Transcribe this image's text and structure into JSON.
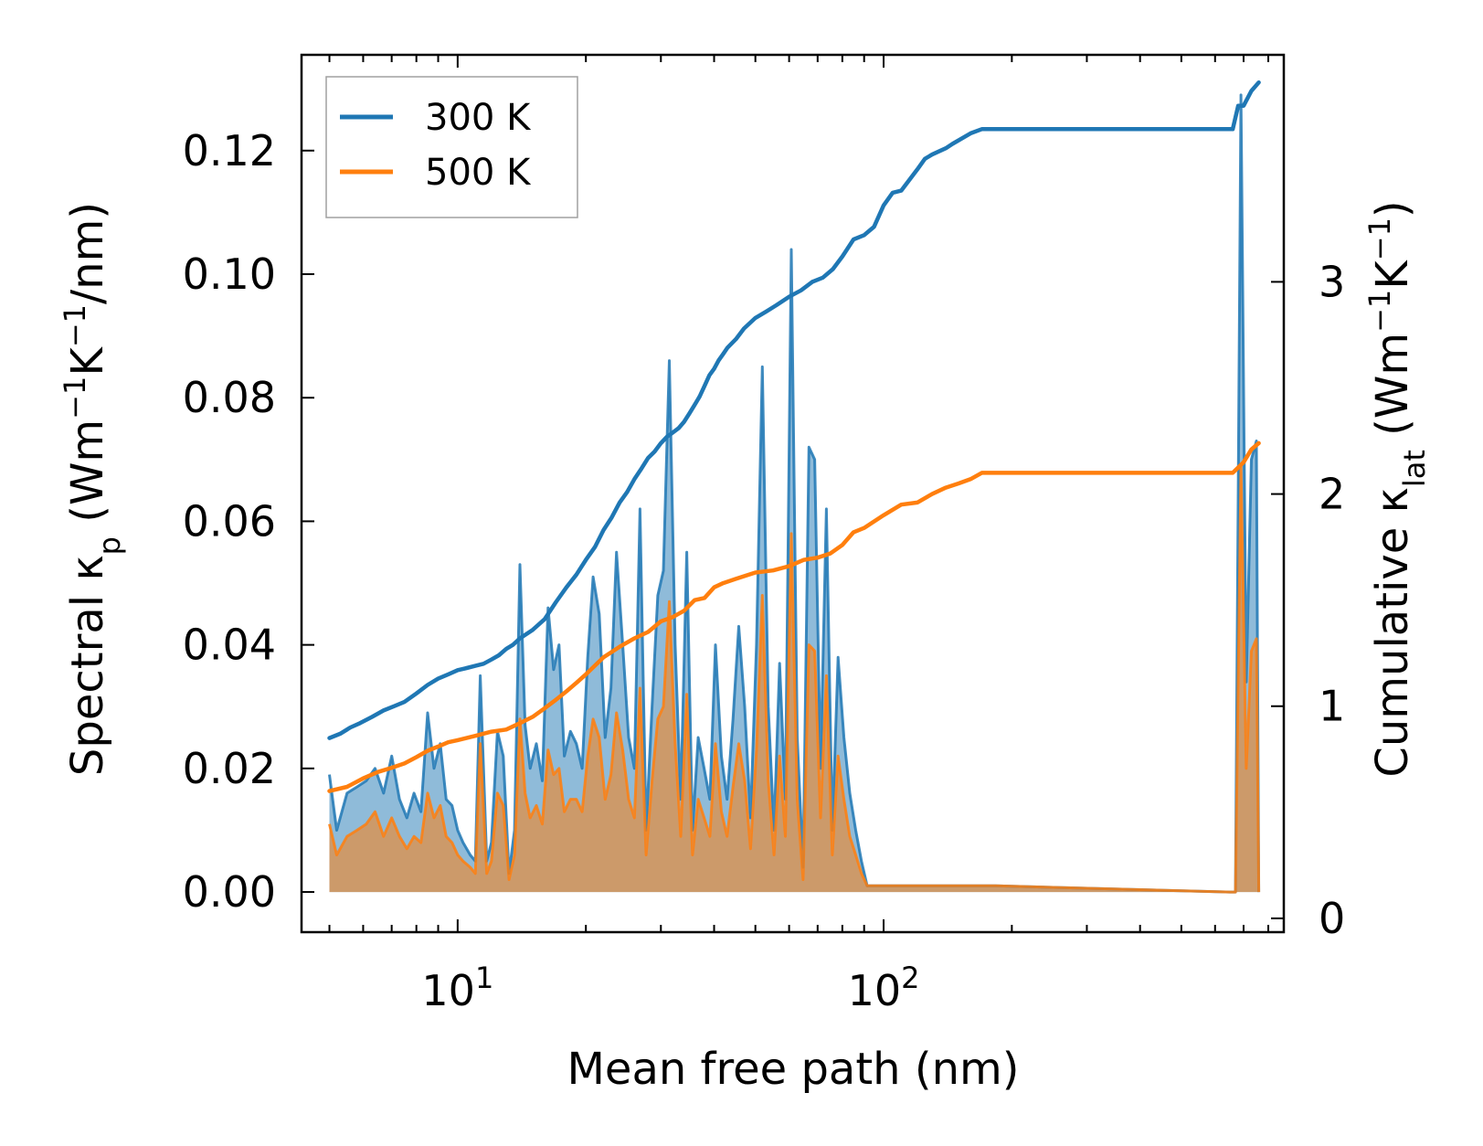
{
  "chart_data": {
    "type": "line",
    "title": "",
    "xlabel": "Mean free path (nm)",
    "ylabel_left": {
      "base": "Spectral κ",
      "sub": "p",
      "unit_open": "(Wm",
      "sup1": "−1",
      "unit_mid": "K",
      "sup2": "−1",
      "unit_close": "/nm)"
    },
    "ylabel_right": {
      "base": "Cumulative κ",
      "sub": "lat",
      "unit_open": "(Wm",
      "sup1": "−1",
      "unit_mid": "K",
      "sup2": "−1",
      "unit_close": ")"
    },
    "xscale": "log",
    "xlim": [
      4.3,
      870
    ],
    "ylim_left": [
      -0.0065,
      0.1355
    ],
    "ylim_right": [
      -0.065,
      4.07
    ],
    "x_ticks": [
      {
        "value": 10,
        "base": "10",
        "exp": "1"
      },
      {
        "value": 100,
        "base": "10",
        "exp": "2"
      }
    ],
    "y_left_ticks": [
      {
        "value": 0.0,
        "label": "0.00"
      },
      {
        "value": 0.02,
        "label": "0.02"
      },
      {
        "value": 0.04,
        "label": "0.04"
      },
      {
        "value": 0.06,
        "label": "0.06"
      },
      {
        "value": 0.08,
        "label": "0.08"
      },
      {
        "value": 0.1,
        "label": "0.10"
      },
      {
        "value": 0.12,
        "label": "0.12"
      }
    ],
    "y_right_ticks": [
      {
        "value": 0,
        "label": "0"
      },
      {
        "value": 1,
        "label": "1"
      },
      {
        "value": 2,
        "label": "2"
      },
      {
        "value": 3,
        "label": "3"
      }
    ],
    "legend_position": "upper-left",
    "series": [
      {
        "name": "300 K",
        "color": "#1f77b4",
        "axis": "right",
        "role": "cumulative",
        "x": [
          5,
          5.3,
          5.6,
          5.9,
          6.3,
          6.7,
          7.1,
          7.5,
          8,
          8.5,
          9,
          9.5,
          10,
          10.5,
          11,
          11.5,
          12,
          12.5,
          13,
          13.5,
          14,
          15,
          16,
          17,
          18,
          19,
          20,
          21,
          22,
          23,
          24,
          25,
          26,
          27,
          28,
          29,
          30,
          31,
          32,
          33,
          34,
          35,
          36,
          37,
          38,
          39,
          40,
          41,
          42,
          43,
          45,
          47,
          50,
          53,
          56,
          60,
          64,
          68,
          72,
          76,
          80,
          85,
          90,
          95,
          100,
          105,
          110,
          120,
          125,
          130,
          140,
          145,
          160,
          170,
          180,
          400,
          660,
          680,
          700,
          730,
          760
        ],
        "y": [
          0.85,
          0.87,
          0.9,
          0.92,
          0.95,
          0.98,
          1.0,
          1.02,
          1.06,
          1.1,
          1.13,
          1.15,
          1.17,
          1.18,
          1.19,
          1.2,
          1.22,
          1.24,
          1.27,
          1.29,
          1.32,
          1.36,
          1.41,
          1.49,
          1.56,
          1.62,
          1.69,
          1.75,
          1.83,
          1.89,
          1.96,
          2.01,
          2.07,
          2.12,
          2.17,
          2.2,
          2.24,
          2.27,
          2.29,
          2.31,
          2.34,
          2.38,
          2.42,
          2.46,
          2.51,
          2.56,
          2.59,
          2.63,
          2.66,
          2.69,
          2.73,
          2.78,
          2.83,
          2.86,
          2.89,
          2.93,
          2.96,
          3.0,
          3.02,
          3.06,
          3.12,
          3.2,
          3.22,
          3.26,
          3.36,
          3.42,
          3.43,
          3.53,
          3.58,
          3.6,
          3.63,
          3.65,
          3.7,
          3.72,
          3.72,
          3.72,
          3.72,
          3.83,
          3.83,
          3.9,
          3.94
        ]
      },
      {
        "name": "500 K",
        "color": "#ff7f0e",
        "axis": "right",
        "role": "cumulative",
        "x": [
          5,
          5.5,
          6,
          6.5,
          7,
          7.5,
          8,
          8.5,
          9,
          9.5,
          10,
          11,
          12,
          13,
          14,
          15,
          16,
          17,
          18,
          19,
          20,
          22,
          24,
          26,
          28,
          30,
          32,
          34,
          36,
          38,
          40,
          42,
          45,
          50,
          55,
          60,
          65,
          70,
          75,
          80,
          85,
          90,
          100,
          110,
          120,
          130,
          140,
          150,
          160,
          170,
          400,
          660,
          700,
          730,
          760
        ],
        "y": [
          0.6,
          0.62,
          0.66,
          0.69,
          0.71,
          0.73,
          0.76,
          0.79,
          0.81,
          0.83,
          0.84,
          0.86,
          0.88,
          0.89,
          0.92,
          0.95,
          0.99,
          1.03,
          1.07,
          1.11,
          1.15,
          1.23,
          1.28,
          1.32,
          1.35,
          1.4,
          1.42,
          1.45,
          1.5,
          1.51,
          1.56,
          1.58,
          1.6,
          1.63,
          1.64,
          1.66,
          1.69,
          1.7,
          1.72,
          1.76,
          1.82,
          1.84,
          1.9,
          1.95,
          1.96,
          2.0,
          2.03,
          2.05,
          2.07,
          2.1,
          2.1,
          2.1,
          2.15,
          2.21,
          2.24
        ]
      },
      {
        "name": "300 K",
        "color": "#1f77b4",
        "axis": "left",
        "role": "spectral",
        "x": [
          5,
          5.2,
          5.5,
          5.8,
          6.1,
          6.4,
          6.7,
          7.0,
          7.3,
          7.6,
          7.9,
          8.2,
          8.5,
          8.8,
          9.1,
          9.4,
          9.7,
          10.0,
          10.3,
          10.7,
          11.0,
          11.3,
          11.7,
          12.0,
          12.4,
          12.8,
          13.2,
          13.6,
          14.0,
          14.4,
          14.8,
          15.3,
          15.8,
          16.3,
          16.8,
          17.3,
          17.8,
          18.4,
          19.0,
          19.6,
          20.2,
          20.8,
          21.5,
          22.2,
          22.9,
          23.6,
          24.4,
          25.2,
          26.0,
          26.8,
          27.7,
          28.6,
          29.5,
          30.4,
          31.4,
          32.4,
          33.4,
          34.5,
          35.6,
          36.7,
          37.9,
          39.1,
          40.3,
          41.6,
          42.9,
          44.3,
          45.7,
          47.2,
          48.7,
          50.3,
          51.9,
          53.6,
          55.3,
          57.0,
          58.8,
          60.7,
          62.7,
          64.7,
          66.8,
          68.9,
          71.1,
          73.4,
          75.8,
          78.2,
          80.7,
          83.3,
          86.0,
          88.7,
          91.5,
          94.5,
          97.5,
          100.6,
          103.8,
          107.2,
          110.6,
          114.1,
          117.8,
          121.6,
          125.5,
          129.5,
          133.6,
          137.9,
          142.3,
          146.9,
          151.6,
          156.5,
          161.5,
          166.7,
          172.0,
          177.5,
          183.2,
          650,
          670,
          690,
          710,
          730,
          750,
          760
        ],
        "y": [
          0.019,
          0.01,
          0.016,
          0.017,
          0.018,
          0.02,
          0.016,
          0.022,
          0.015,
          0.012,
          0.016,
          0.013,
          0.029,
          0.02,
          0.024,
          0.015,
          0.014,
          0.01,
          0.008,
          0.006,
          0.005,
          0.035,
          0.005,
          0.008,
          0.026,
          0.022,
          0.003,
          0.01,
          0.053,
          0.027,
          0.02,
          0.024,
          0.018,
          0.046,
          0.036,
          0.04,
          0.022,
          0.026,
          0.024,
          0.02,
          0.038,
          0.051,
          0.045,
          0.025,
          0.033,
          0.055,
          0.04,
          0.025,
          0.02,
          0.062,
          0.01,
          0.03,
          0.048,
          0.052,
          0.086,
          0.04,
          0.015,
          0.055,
          0.01,
          0.025,
          0.02,
          0.015,
          0.04,
          0.022,
          0.015,
          0.028,
          0.043,
          0.03,
          0.012,
          0.04,
          0.085,
          0.03,
          0.01,
          0.037,
          0.015,
          0.104,
          0.025,
          0.004,
          0.072,
          0.07,
          0.02,
          0.062,
          0.01,
          0.038,
          0.025,
          0.016,
          0.01,
          0.005,
          0.001,
          0.001,
          0.001,
          0.001,
          0.001,
          0.001,
          0.001,
          0.001,
          0.001,
          0.001,
          0.001,
          0.001,
          0.001,
          0.001,
          0.001,
          0.001,
          0.001,
          0.001,
          0.001,
          0.001,
          0.001,
          0.001,
          0.001,
          0.0,
          0.0,
          0.129,
          0.034,
          0.07,
          0.073,
          0.0
        ]
      },
      {
        "name": "500 K",
        "color": "#ff7f0e",
        "axis": "left",
        "role": "spectral",
        "x": [
          5,
          5.2,
          5.5,
          5.8,
          6.1,
          6.4,
          6.7,
          7.0,
          7.3,
          7.6,
          7.9,
          8.2,
          8.5,
          8.8,
          9.1,
          9.4,
          9.7,
          10.0,
          10.3,
          10.7,
          11.0,
          11.3,
          11.7,
          12.0,
          12.4,
          12.8,
          13.2,
          13.6,
          14.0,
          14.4,
          14.8,
          15.3,
          15.8,
          16.3,
          16.8,
          17.3,
          17.8,
          18.4,
          19.0,
          19.6,
          20.2,
          20.8,
          21.5,
          22.2,
          22.9,
          23.6,
          24.4,
          25.2,
          26.0,
          26.8,
          27.7,
          28.6,
          29.5,
          30.4,
          31.4,
          32.4,
          33.4,
          34.5,
          35.6,
          36.7,
          37.9,
          39.1,
          40.3,
          41.6,
          42.9,
          44.3,
          45.7,
          47.2,
          48.7,
          50.3,
          51.9,
          53.6,
          55.3,
          57.0,
          58.8,
          60.7,
          62.7,
          64.7,
          66.8,
          68.9,
          71.1,
          73.4,
          75.8,
          78.2,
          80.7,
          83.3,
          86.0,
          88.7,
          91.5,
          94.5,
          97.5,
          100.6,
          103.8,
          107.2,
          110.6,
          114.1,
          117.8,
          121.6,
          125.5,
          129.5,
          133.6,
          137.9,
          142.3,
          146.9,
          151.6,
          156.5,
          161.5,
          166.7,
          172.0,
          177.5,
          183.2,
          650,
          670,
          690,
          710,
          730,
          750,
          760
        ],
        "y": [
          0.011,
          0.006,
          0.009,
          0.01,
          0.011,
          0.013,
          0.009,
          0.012,
          0.009,
          0.007,
          0.009,
          0.008,
          0.016,
          0.012,
          0.014,
          0.009,
          0.008,
          0.006,
          0.005,
          0.004,
          0.003,
          0.024,
          0.003,
          0.005,
          0.016,
          0.014,
          0.002,
          0.006,
          0.028,
          0.016,
          0.012,
          0.014,
          0.011,
          0.023,
          0.019,
          0.02,
          0.013,
          0.015,
          0.015,
          0.013,
          0.022,
          0.028,
          0.025,
          0.015,
          0.019,
          0.029,
          0.023,
          0.015,
          0.012,
          0.033,
          0.006,
          0.018,
          0.028,
          0.03,
          0.047,
          0.024,
          0.009,
          0.032,
          0.006,
          0.015,
          0.012,
          0.009,
          0.024,
          0.013,
          0.009,
          0.017,
          0.024,
          0.018,
          0.007,
          0.023,
          0.048,
          0.018,
          0.006,
          0.022,
          0.009,
          0.058,
          0.015,
          0.002,
          0.04,
          0.039,
          0.012,
          0.035,
          0.006,
          0.022,
          0.015,
          0.009,
          0.006,
          0.003,
          0.001,
          0.001,
          0.001,
          0.001,
          0.001,
          0.001,
          0.001,
          0.001,
          0.001,
          0.001,
          0.001,
          0.001,
          0.001,
          0.001,
          0.001,
          0.001,
          0.001,
          0.001,
          0.001,
          0.001,
          0.001,
          0.001,
          0.001,
          0.0,
          0.0,
          0.069,
          0.02,
          0.039,
          0.041,
          0.0
        ]
      }
    ]
  }
}
